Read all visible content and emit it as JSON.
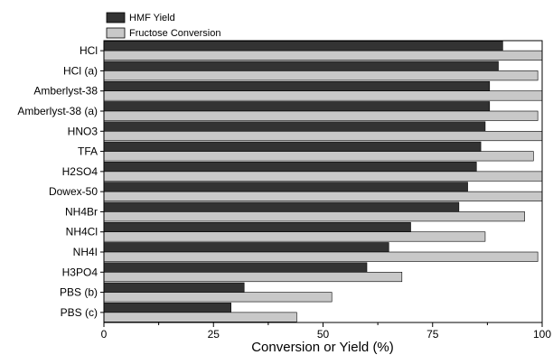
{
  "chart_data": {
    "type": "bar",
    "orientation": "horizontal",
    "title": "",
    "xlabel": "Conversion or Yield (%)",
    "ylabel": "",
    "xlim": [
      0,
      100
    ],
    "x_ticks": [
      0,
      25,
      50,
      75,
      100
    ],
    "grid": false,
    "legend_position": "top-left",
    "categories": [
      "HCl",
      "HCl (a)",
      "Amberlyst-38",
      "Amberlyst-38 (a)",
      "HNO3",
      "TFA",
      "H2SO4",
      "Dowex-50",
      "NH4Br",
      "NH4Cl",
      "NH4I",
      "H3PO4",
      "PBS (b)",
      "PBS (c)"
    ],
    "series": [
      {
        "name": "HMF Yield",
        "color": "#333333",
        "values": [
          91,
          90,
          88,
          88,
          87,
          86,
          85,
          83,
          81,
          70,
          65,
          60,
          32,
          29
        ]
      },
      {
        "name": "Fructose Conversion",
        "color": "#c8c8c8",
        "values": [
          100,
          99,
          100,
          99,
          100,
          98,
          100,
          100,
          96,
          87,
          99,
          68,
          52,
          44
        ]
      }
    ]
  }
}
